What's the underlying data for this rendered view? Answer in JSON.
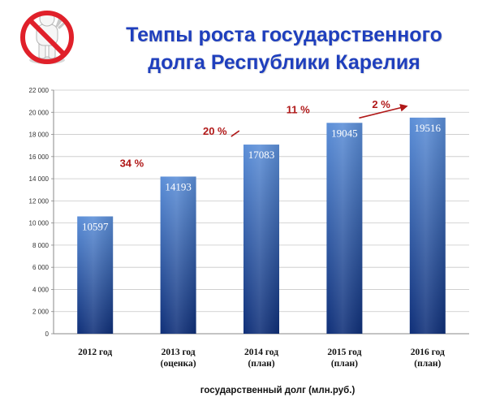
{
  "title_lines": [
    "Темпы роста государственного",
    "долга Республики Карелия"
  ],
  "icon": "no-stop-hand-icon",
  "colors": {
    "title": "#1f3fbd",
    "bar_top": "#5c8fd8",
    "bar_bottom": "#0f2f78",
    "growth": "#b01818",
    "grid": "#c8c8c8"
  },
  "chart_data": {
    "type": "bar",
    "categories": [
      [
        "2012 год"
      ],
      [
        "2013 год",
        "(оценка)"
      ],
      [
        "2014 год",
        "(план)"
      ],
      [
        "2015 год",
        "(план)"
      ],
      [
        "2016 год",
        "(план)"
      ]
    ],
    "values": [
      10597,
      14193,
      17083,
      19045,
      19516
    ],
    "value_labels": [
      "10597",
      "14193",
      "17083",
      "19045",
      "19516"
    ],
    "growth_labels": [
      "34 %",
      "20 %",
      "11 %",
      "2 %"
    ],
    "xlabel": "государственный долг (млн.руб.)",
    "ylabel": "",
    "ylim": [
      0,
      22000
    ],
    "yticks": [
      0,
      2000,
      4000,
      6000,
      8000,
      10000,
      12000,
      14000,
      16000,
      18000,
      20000,
      22000
    ],
    "ytick_labels": [
      "0",
      "2 000",
      "4 000",
      "6 000",
      "8 000",
      "10 000",
      "12 000",
      "14 000",
      "16 000",
      "18 000",
      "20 000",
      "22 000"
    ],
    "grid": true,
    "legend": "none"
  }
}
